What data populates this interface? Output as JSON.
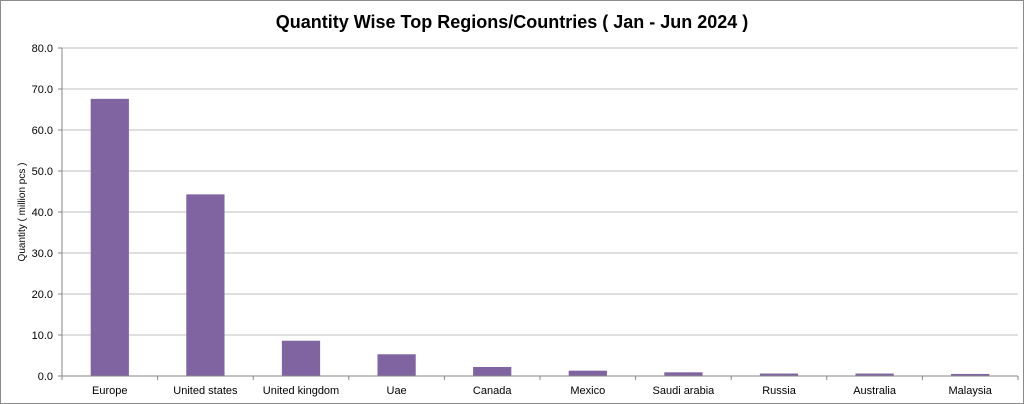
{
  "chart_data": {
    "type": "bar",
    "title": "Quantity Wise Top Regions/Countries ( Jan - Jun 2024 )",
    "xlabel": "",
    "ylabel": "Quantity ( million pcs )",
    "categories": [
      "Europe",
      "United states",
      "United kingdom",
      "Uae",
      "Canada",
      "Mexico",
      "Saudi arabia",
      "Russia",
      "Australia",
      "Malaysia"
    ],
    "values": [
      67.6,
      44.3,
      8.6,
      5.3,
      2.2,
      1.3,
      0.9,
      0.6,
      0.6,
      0.5
    ],
    "ylim": [
      0,
      80
    ],
    "yticks": [
      "0.0",
      "10.0",
      "20.0",
      "30.0",
      "40.0",
      "50.0",
      "60.0",
      "70.0",
      "80.0"
    ],
    "grid": true,
    "legend": "none",
    "colors": {
      "bar": "#8064a2",
      "grid": "#bfbfbf",
      "axis": "#868686"
    }
  }
}
